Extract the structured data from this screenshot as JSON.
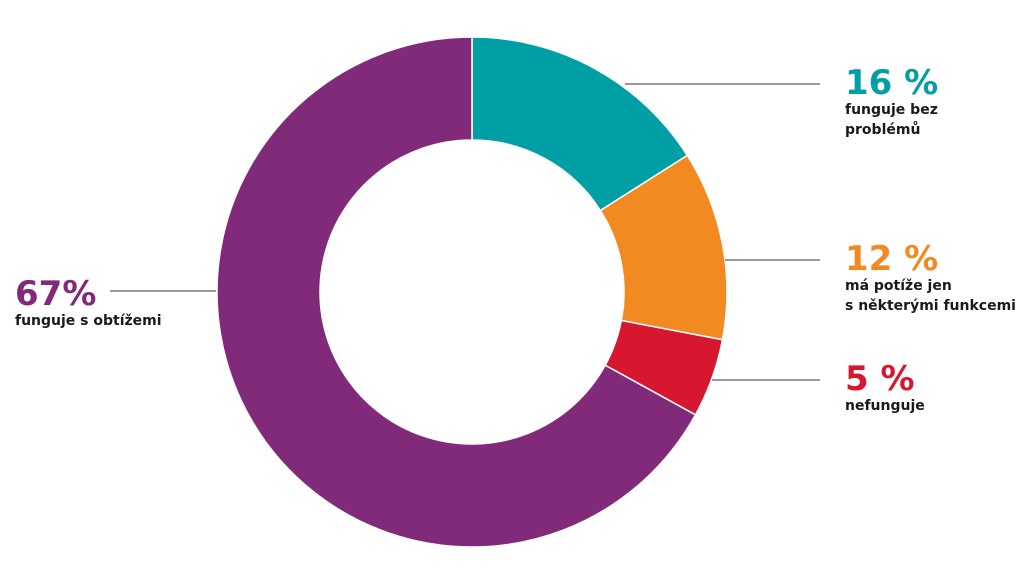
{
  "chart_data": {
    "type": "donut",
    "categories": [
      [
        "funguje bez",
        "problémů"
      ],
      [
        "má potíže jen",
        "s některými funkcemi"
      ],
      [
        "nefunguje"
      ],
      [
        "funguje s obtížemi"
      ]
    ],
    "values": [
      16,
      12,
      5,
      67
    ],
    "value_labels": [
      "16 %",
      "12 %",
      "5 %",
      "67%"
    ],
    "colors": [
      "#009fa6",
      "#f28a22",
      "#d7172f",
      "#812a7a"
    ]
  }
}
